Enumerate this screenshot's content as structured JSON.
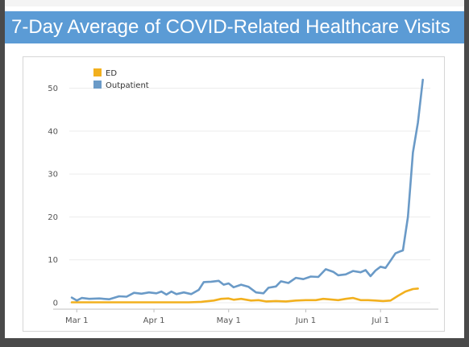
{
  "header": {
    "title": "7-Day Average of COVID-Related Healthcare Visits"
  },
  "colors": {
    "title_bar": "#5b9bd5",
    "ed": "#f2b01e",
    "outpatient": "#6a9ac7"
  },
  "chart_data": {
    "type": "line",
    "title": "",
    "xlabel": "",
    "ylabel": "",
    "ylim": [
      0,
      55
    ],
    "yticks": [
      0,
      10,
      20,
      30,
      40,
      50
    ],
    "xlim": [
      "2020-02-27",
      "2020-07-21"
    ],
    "xticks": [
      {
        "label": "Mar 1",
        "date": "2020-03-01"
      },
      {
        "label": "Apr 1",
        "date": "2020-04-01"
      },
      {
        "label": "May 1",
        "date": "2020-05-01"
      },
      {
        "label": "Jun 1",
        "date": "2020-06-01"
      },
      {
        "label": "Jul 1",
        "date": "2020-07-01"
      }
    ],
    "grid": true,
    "legend": "top-left",
    "series": [
      {
        "name": "ED",
        "color": "#f2b01e",
        "points": [
          [
            "2020-02-28",
            0.1
          ],
          [
            "2020-03-05",
            0.1
          ],
          [
            "2020-03-15",
            0.1
          ],
          [
            "2020-03-25",
            0.1
          ],
          [
            "2020-04-05",
            0.1
          ],
          [
            "2020-04-15",
            0.1
          ],
          [
            "2020-04-20",
            0.2
          ],
          [
            "2020-04-25",
            0.5
          ],
          [
            "2020-04-28",
            0.9
          ],
          [
            "2020-05-01",
            1.0
          ],
          [
            "2020-05-03",
            0.7
          ],
          [
            "2020-05-06",
            0.9
          ],
          [
            "2020-05-10",
            0.5
          ],
          [
            "2020-05-13",
            0.6
          ],
          [
            "2020-05-16",
            0.3
          ],
          [
            "2020-05-20",
            0.4
          ],
          [
            "2020-05-24",
            0.3
          ],
          [
            "2020-05-28",
            0.5
          ],
          [
            "2020-06-01",
            0.6
          ],
          [
            "2020-06-05",
            0.6
          ],
          [
            "2020-06-08",
            0.9
          ],
          [
            "2020-06-10",
            0.8
          ],
          [
            "2020-06-14",
            0.6
          ],
          [
            "2020-06-17",
            0.9
          ],
          [
            "2020-06-20",
            1.1
          ],
          [
            "2020-06-23",
            0.6
          ],
          [
            "2020-06-26",
            0.6
          ],
          [
            "2020-06-29",
            0.5
          ],
          [
            "2020-07-02",
            0.4
          ],
          [
            "2020-07-05",
            0.5
          ],
          [
            "2020-07-08",
            1.6
          ],
          [
            "2020-07-11",
            2.6
          ],
          [
            "2020-07-14",
            3.2
          ],
          [
            "2020-07-16",
            3.3
          ]
        ]
      },
      {
        "name": "Outpatient",
        "color": "#6a9ac7",
        "points": [
          [
            "2020-02-28",
            1.2
          ],
          [
            "2020-03-01",
            0.5
          ],
          [
            "2020-03-03",
            1.1
          ],
          [
            "2020-03-06",
            0.9
          ],
          [
            "2020-03-10",
            1.0
          ],
          [
            "2020-03-14",
            0.8
          ],
          [
            "2020-03-18",
            1.5
          ],
          [
            "2020-03-21",
            1.4
          ],
          [
            "2020-03-24",
            2.3
          ],
          [
            "2020-03-27",
            2.1
          ],
          [
            "2020-03-30",
            2.4
          ],
          [
            "2020-04-02",
            2.2
          ],
          [
            "2020-04-04",
            2.6
          ],
          [
            "2020-04-06",
            1.9
          ],
          [
            "2020-04-08",
            2.6
          ],
          [
            "2020-04-10",
            2.0
          ],
          [
            "2020-04-13",
            2.4
          ],
          [
            "2020-04-16",
            2.0
          ],
          [
            "2020-04-19",
            3.0
          ],
          [
            "2020-04-21",
            4.8
          ],
          [
            "2020-04-24",
            4.9
          ],
          [
            "2020-04-27",
            5.1
          ],
          [
            "2020-04-29",
            4.2
          ],
          [
            "2020-05-01",
            4.5
          ],
          [
            "2020-05-03",
            3.6
          ],
          [
            "2020-05-06",
            4.2
          ],
          [
            "2020-05-09",
            3.7
          ],
          [
            "2020-05-12",
            2.4
          ],
          [
            "2020-05-15",
            2.2
          ],
          [
            "2020-05-17",
            3.5
          ],
          [
            "2020-05-20",
            3.8
          ],
          [
            "2020-05-22",
            5.0
          ],
          [
            "2020-05-25",
            4.6
          ],
          [
            "2020-05-28",
            5.8
          ],
          [
            "2020-05-31",
            5.5
          ],
          [
            "2020-06-03",
            6.1
          ],
          [
            "2020-06-06",
            6.0
          ],
          [
            "2020-06-09",
            7.8
          ],
          [
            "2020-06-12",
            7.2
          ],
          [
            "2020-06-14",
            6.4
          ],
          [
            "2020-06-17",
            6.6
          ],
          [
            "2020-06-20",
            7.4
          ],
          [
            "2020-06-23",
            7.1
          ],
          [
            "2020-06-25",
            7.6
          ],
          [
            "2020-06-27",
            6.2
          ],
          [
            "2020-06-29",
            7.5
          ],
          [
            "2020-07-01",
            8.4
          ],
          [
            "2020-07-03",
            8.1
          ],
          [
            "2020-07-05",
            9.8
          ],
          [
            "2020-07-07",
            11.5
          ],
          [
            "2020-07-09",
            12.0
          ],
          [
            "2020-07-10",
            12.2
          ],
          [
            "2020-07-12",
            20.0
          ],
          [
            "2020-07-14",
            35.0
          ],
          [
            "2020-07-16",
            42.0
          ],
          [
            "2020-07-18",
            52.0
          ]
        ]
      }
    ]
  }
}
